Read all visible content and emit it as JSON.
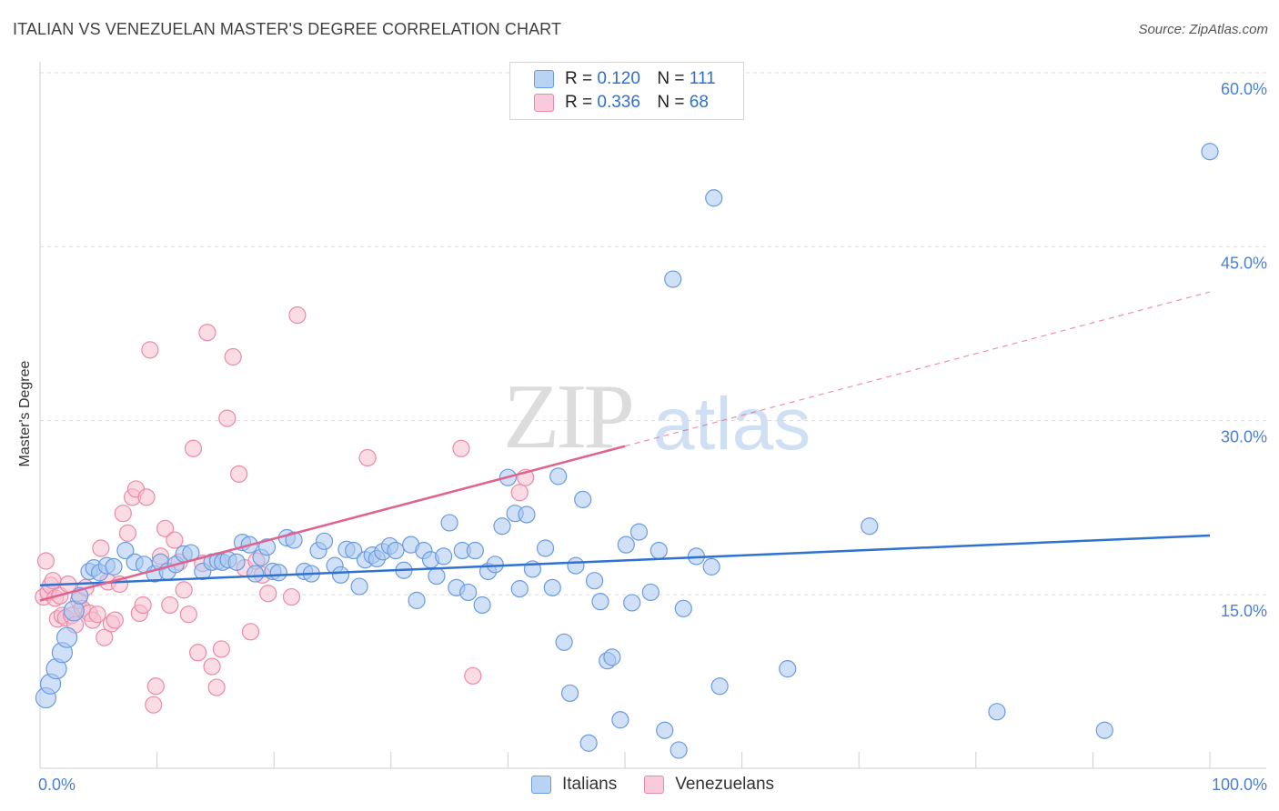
{
  "header": {
    "title": "ITALIAN VS VENEZUELAN MASTER'S DEGREE CORRELATION CHART",
    "source": "Source: ZipAtlas.com"
  },
  "watermark": {
    "zip": "ZIP",
    "atlas": "atlas"
  },
  "legend_top": {
    "rows": [
      {
        "r_label": "R =",
        "r_value": "0.120",
        "n_label": "N =",
        "n_value": "111"
      },
      {
        "r_label": "R =",
        "r_value": "0.336",
        "n_label": "N =",
        "n_value": "68"
      }
    ]
  },
  "legend_bottom": {
    "italians": "Italians",
    "venezuelans": "Venezuelans"
  },
  "colors": {
    "blue_fill": "#a9c8f0",
    "blue_stroke": "#6a9be0",
    "blue_line": "#2f72d0",
    "pink_fill": "#f7bfd0",
    "pink_stroke": "#ea8aa8",
    "pink_line": "#e0638f",
    "tick_text": "#4a7fd4",
    "grid": "#dcdcdc"
  },
  "chart_data": {
    "type": "scatter",
    "title": "ITALIAN VS VENEZUELAN MASTER'S DEGREE CORRELATION CHART",
    "xlabel": "",
    "ylabel": "Master's Degree",
    "xlim": [
      0,
      100
    ],
    "ylim": [
      0,
      63
    ],
    "x_tick_labels": [
      "0.0%",
      "100.0%"
    ],
    "y_ticks": [
      15,
      30,
      45,
      60
    ],
    "y_tick_labels": [
      "15.0%",
      "30.0%",
      "45.0%",
      "60.0%"
    ],
    "grid": true,
    "series": [
      {
        "name": "Italians",
        "r": 0.12,
        "n": 111,
        "trend": {
          "x": [
            0,
            100
          ],
          "y": [
            15.8,
            20.1
          ]
        },
        "points": [
          [
            0.5,
            6.1
          ],
          [
            0.9,
            7.3
          ],
          [
            1.4,
            8.6
          ],
          [
            1.9,
            10.0
          ],
          [
            2.3,
            11.3
          ],
          [
            2.9,
            13.6
          ],
          [
            3.4,
            14.9
          ],
          [
            4.2,
            17.0
          ],
          [
            4.6,
            17.3
          ],
          [
            5.1,
            16.9
          ],
          [
            5.7,
            17.5
          ],
          [
            6.3,
            17.4
          ],
          [
            7.3,
            18.8
          ],
          [
            8.1,
            17.8
          ],
          [
            8.9,
            17.6
          ],
          [
            9.8,
            16.8
          ],
          [
            10.3,
            17.8
          ],
          [
            10.9,
            17.0
          ],
          [
            11.6,
            17.6
          ],
          [
            12.3,
            18.5
          ],
          [
            12.9,
            18.6
          ],
          [
            13.9,
            17.0
          ],
          [
            14.7,
            17.8
          ],
          [
            15.2,
            17.9
          ],
          [
            15.6,
            17.8
          ],
          [
            16.1,
            18.0
          ],
          [
            16.8,
            17.8
          ],
          [
            17.3,
            19.5
          ],
          [
            17.9,
            19.3
          ],
          [
            18.4,
            16.8
          ],
          [
            18.9,
            18.2
          ],
          [
            19.4,
            19.1
          ],
          [
            19.9,
            17.0
          ],
          [
            20.4,
            16.9
          ],
          [
            21.1,
            19.9
          ],
          [
            21.7,
            19.7
          ],
          [
            22.6,
            17.0
          ],
          [
            23.2,
            16.8
          ],
          [
            23.8,
            18.8
          ],
          [
            24.3,
            19.6
          ],
          [
            25.2,
            17.5
          ],
          [
            25.7,
            16.7
          ],
          [
            26.2,
            18.9
          ],
          [
            26.8,
            18.8
          ],
          [
            27.3,
            15.7
          ],
          [
            27.8,
            18.0
          ],
          [
            28.4,
            18.4
          ],
          [
            28.8,
            18.1
          ],
          [
            29.3,
            18.7
          ],
          [
            29.9,
            19.2
          ],
          [
            30.4,
            18.8
          ],
          [
            31.1,
            17.1
          ],
          [
            31.7,
            19.3
          ],
          [
            32.2,
            14.5
          ],
          [
            32.8,
            18.8
          ],
          [
            33.4,
            18.0
          ],
          [
            33.9,
            16.6
          ],
          [
            34.5,
            18.3
          ],
          [
            35.0,
            21.2
          ],
          [
            35.6,
            15.6
          ],
          [
            36.1,
            18.8
          ],
          [
            36.6,
            15.2
          ],
          [
            37.2,
            18.8
          ],
          [
            37.8,
            14.1
          ],
          [
            38.3,
            17.0
          ],
          [
            38.9,
            17.6
          ],
          [
            39.5,
            20.9
          ],
          [
            40.0,
            25.1
          ],
          [
            40.6,
            22.0
          ],
          [
            41.0,
            15.5
          ],
          [
            41.6,
            21.9
          ],
          [
            42.1,
            17.2
          ],
          [
            43.2,
            19.0
          ],
          [
            43.8,
            15.6
          ],
          [
            44.3,
            25.2
          ],
          [
            44.8,
            10.9
          ],
          [
            45.3,
            6.5
          ],
          [
            45.8,
            17.5
          ],
          [
            46.4,
            23.2
          ],
          [
            46.9,
            2.2
          ],
          [
            47.4,
            16.2
          ],
          [
            47.9,
            14.4
          ],
          [
            48.5,
            9.3
          ],
          [
            48.9,
            9.6
          ],
          [
            49.6,
            4.2
          ],
          [
            50.1,
            19.3
          ],
          [
            50.6,
            14.3
          ],
          [
            51.2,
            20.4
          ],
          [
            52.2,
            15.2
          ],
          [
            52.9,
            18.8
          ],
          [
            53.4,
            3.3
          ],
          [
            54.1,
            42.2
          ],
          [
            54.6,
            1.6
          ],
          [
            55.0,
            13.8
          ],
          [
            56.1,
            18.3
          ],
          [
            57.4,
            17.4
          ],
          [
            57.6,
            49.2
          ],
          [
            58.1,
            7.1
          ],
          [
            63.9,
            8.6
          ],
          [
            70.9,
            20.9
          ],
          [
            81.8,
            4.9
          ],
          [
            91.0,
            3.3
          ],
          [
            100.0,
            53.2
          ]
        ]
      },
      {
        "name": "Venezuelans",
        "r": 0.336,
        "n": 68,
        "trend": {
          "x": [
            0,
            50
          ],
          "y": [
            14.5,
            27.8
          ]
        },
        "trend_extrapolated": {
          "x": [
            50,
            100
          ],
          "y": [
            27.8,
            41.1
          ]
        },
        "points": [
          [
            0.3,
            14.8
          ],
          [
            0.5,
            17.9
          ],
          [
            0.7,
            15.2
          ],
          [
            0.9,
            15.8
          ],
          [
            1.1,
            16.2
          ],
          [
            1.3,
            14.7
          ],
          [
            1.5,
            12.9
          ],
          [
            1.7,
            14.9
          ],
          [
            1.9,
            13.2
          ],
          [
            2.2,
            13.0
          ],
          [
            2.4,
            15.9
          ],
          [
            2.7,
            13.2
          ],
          [
            3.0,
            12.4
          ],
          [
            3.3,
            14.5
          ],
          [
            3.6,
            13.8
          ],
          [
            3.9,
            15.6
          ],
          [
            4.2,
            13.4
          ],
          [
            4.5,
            12.8
          ],
          [
            4.9,
            13.3
          ],
          [
            5.2,
            19.0
          ],
          [
            5.5,
            11.3
          ],
          [
            5.8,
            16.1
          ],
          [
            6.1,
            12.5
          ],
          [
            6.4,
            12.8
          ],
          [
            6.8,
            15.9
          ],
          [
            7.1,
            22.0
          ],
          [
            7.5,
            20.3
          ],
          [
            7.9,
            23.4
          ],
          [
            8.2,
            24.1
          ],
          [
            8.5,
            13.4
          ],
          [
            8.8,
            14.1
          ],
          [
            9.1,
            23.4
          ],
          [
            9.4,
            36.1
          ],
          [
            9.7,
            5.5
          ],
          [
            9.9,
            7.1
          ],
          [
            10.3,
            18.3
          ],
          [
            10.7,
            20.7
          ],
          [
            11.1,
            14.1
          ],
          [
            11.5,
            19.7
          ],
          [
            11.9,
            17.8
          ],
          [
            12.3,
            15.4
          ],
          [
            12.7,
            13.3
          ],
          [
            13.1,
            27.6
          ],
          [
            13.5,
            10.0
          ],
          [
            13.9,
            17.7
          ],
          [
            14.3,
            37.6
          ],
          [
            14.7,
            8.8
          ],
          [
            15.1,
            7.0
          ],
          [
            15.5,
            10.3
          ],
          [
            16.0,
            30.2
          ],
          [
            16.5,
            35.5
          ],
          [
            17.0,
            25.4
          ],
          [
            17.5,
            17.3
          ],
          [
            18.0,
            11.8
          ],
          [
            18.5,
            17.9
          ],
          [
            19.0,
            16.7
          ],
          [
            19.5,
            15.1
          ],
          [
            21.5,
            14.8
          ],
          [
            22.0,
            39.1
          ],
          [
            28.0,
            26.8
          ],
          [
            36.0,
            27.6
          ],
          [
            37.0,
            8.0
          ],
          [
            41.0,
            23.8
          ],
          [
            41.5,
            25.1
          ]
        ]
      }
    ]
  }
}
